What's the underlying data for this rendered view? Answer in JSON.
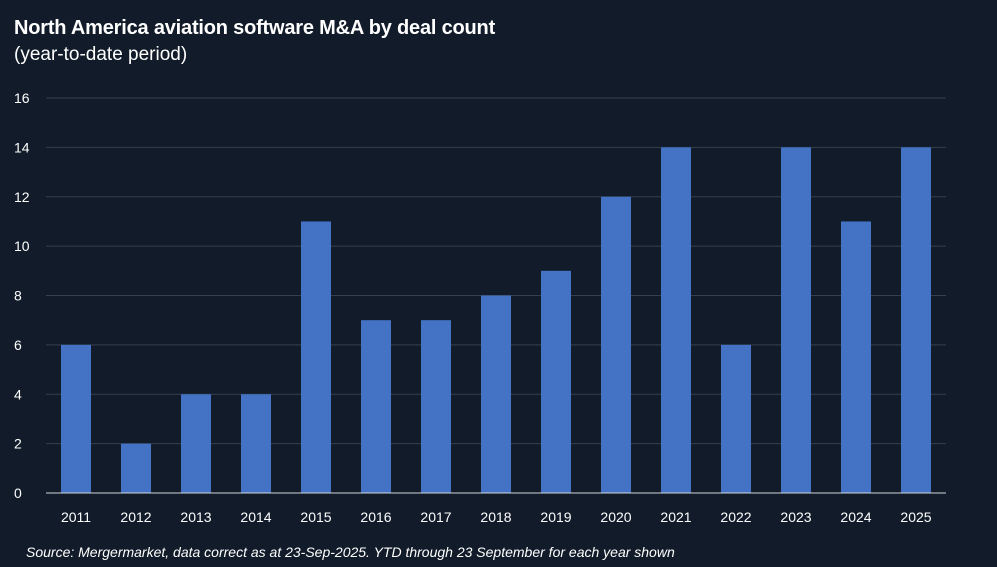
{
  "chart_data": {
    "type": "bar",
    "title": "North America aviation software M&A by deal count",
    "subtitle": "(year-to-date period)",
    "categories": [
      "2011",
      "2012",
      "2013",
      "2014",
      "2015",
      "2016",
      "2017",
      "2018",
      "2019",
      "2020",
      "2021",
      "2022",
      "2023",
      "2024",
      "2025"
    ],
    "values": [
      6,
      2,
      4,
      4,
      11,
      7,
      7,
      8,
      9,
      12,
      14,
      6,
      14,
      11,
      14
    ],
    "yticks": [
      0,
      2,
      4,
      6,
      8,
      10,
      12,
      14,
      16
    ],
    "ylim": [
      0,
      16
    ],
    "xlabel": "",
    "ylabel": "",
    "grid": true,
    "bar_color": "#4472c4",
    "source": "Source: Mergermarket, data correct as at 23-Sep-2025. YTD through 23 September for each year shown"
  }
}
